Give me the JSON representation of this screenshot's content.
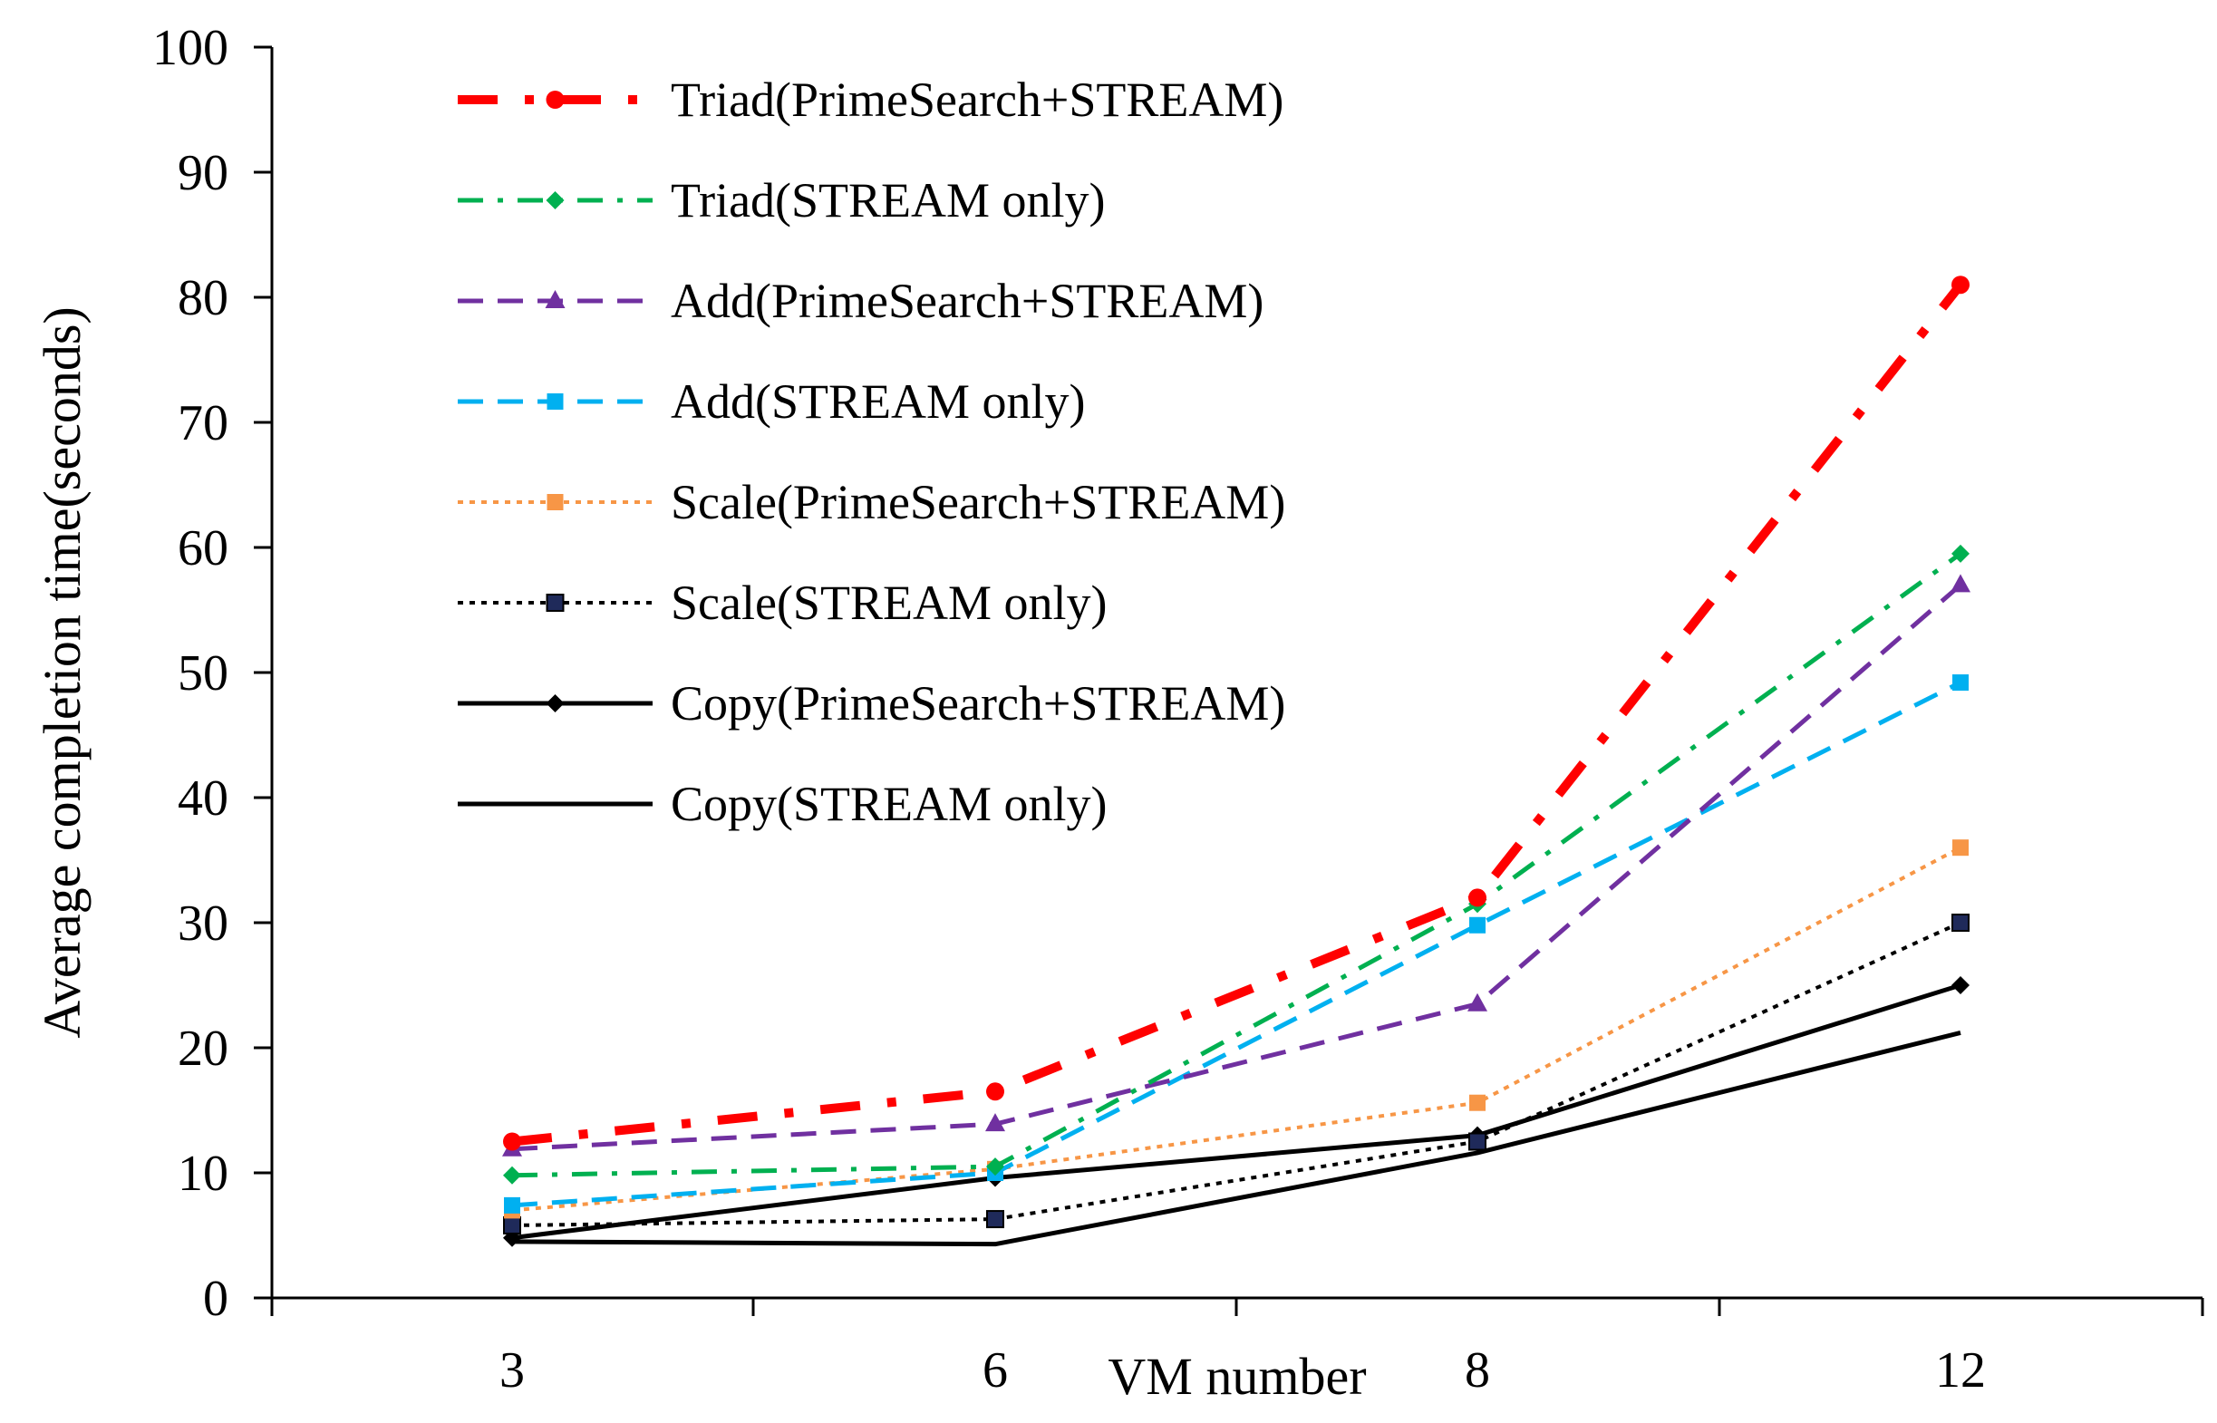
{
  "chart_data": {
    "type": "line",
    "title": "",
    "xlabel": "VM number",
    "ylabel": "Average completion time(seconds)",
    "categories": [
      "3",
      "6",
      "8",
      "12"
    ],
    "ylim": [
      0,
      100
    ],
    "yticks": [
      0,
      10,
      20,
      30,
      40,
      50,
      60,
      70,
      80,
      90,
      100
    ],
    "ytick_labels": [
      "0",
      "10",
      "20",
      "30",
      "40",
      "50",
      "60",
      "70",
      "80",
      "90",
      "100"
    ],
    "grid": false,
    "legend_position": "top-left",
    "series": [
      {
        "name": "Triad(PrimeSearch+STREAM)",
        "values": [
          12.5,
          16.5,
          32,
          81
        ],
        "color": "#ff0000",
        "dash": "long-dash-dot",
        "marker": "circle"
      },
      {
        "name": "Triad(STREAM only)",
        "values": [
          9.8,
          10.5,
          31.5,
          59.5
        ],
        "color": "#00b050",
        "dash": "dash-dot",
        "marker": "diamond"
      },
      {
        "name": "Add(PrimeSearch+STREAM)",
        "values": [
          11.9,
          13.9,
          23.5,
          57
        ],
        "color": "#7030a0",
        "dash": "dash",
        "marker": "triangle"
      },
      {
        "name": "Add(STREAM only)",
        "values": [
          7.4,
          10,
          29.8,
          49.2
        ],
        "color": "#00b0f0",
        "dash": "dash",
        "marker": "square"
      },
      {
        "name": "Scale(PrimeSearch+STREAM)",
        "values": [
          7,
          10.3,
          15.6,
          36
        ],
        "color": "#f79646",
        "dash": "dot",
        "marker": "square"
      },
      {
        "name": "Scale(STREAM only)",
        "values": [
          5.8,
          6.3,
          12.5,
          30
        ],
        "color": "#000000",
        "dash": "dot",
        "marker": "square-navy"
      },
      {
        "name": "Copy(PrimeSearch+STREAM)",
        "values": [
          4.8,
          9.6,
          13,
          25
        ],
        "color": "#000000",
        "dash": "solid",
        "marker": "diamond"
      },
      {
        "name": "Copy(STREAM only)",
        "values": [
          4.5,
          4.3,
          11.6,
          21.2
        ],
        "color": "#000000",
        "dash": "solid",
        "marker": "none"
      }
    ]
  }
}
